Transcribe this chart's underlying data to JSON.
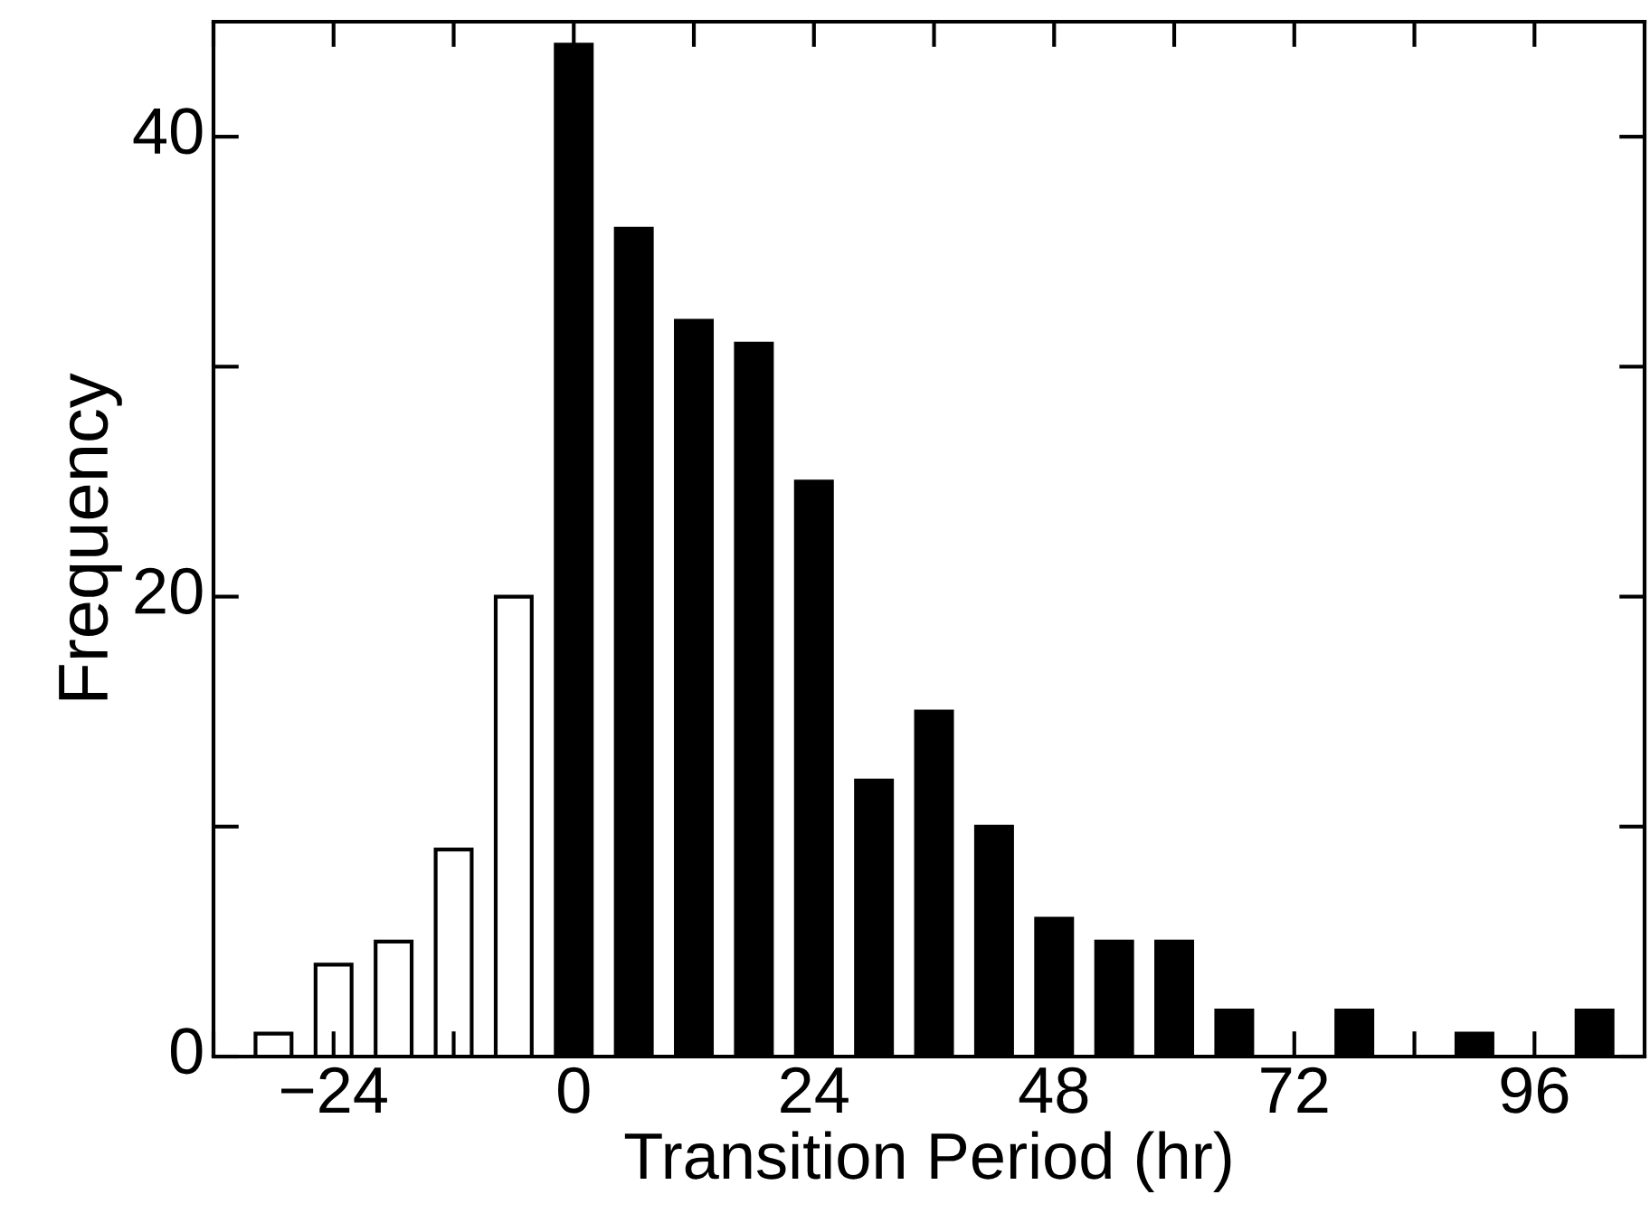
{
  "chart_data": {
    "type": "bar",
    "xlabel": "Transition Period (hr)",
    "ylabel": "Frequency",
    "series": [
      {
        "color": "#ffffff",
        "x": [
          -30,
          -24,
          -18,
          -12,
          -6
        ],
        "values": [
          1,
          4,
          5,
          9,
          20
        ]
      },
      {
        "color": "#000000",
        "x": [
          0,
          6,
          12,
          18,
          24,
          30,
          36,
          42,
          48,
          54,
          60,
          66,
          72,
          78,
          84,
          90,
          96,
          102
        ],
        "values": [
          44,
          36,
          32,
          31,
          25,
          12,
          15,
          10,
          6,
          5,
          5,
          2,
          null,
          2,
          null,
          1,
          null,
          2
        ]
      }
    ],
    "xlim": [
      -36,
      107
    ],
    "ylim": [
      0,
      45
    ],
    "xticks": [
      {
        "value": -36,
        "label": null
      },
      {
        "value": -24,
        "label": "−24"
      },
      {
        "value": -12,
        "label": null
      },
      0,
      {
        "value": 12,
        "label": null
      },
      24,
      {
        "value": 36,
        "label": null
      },
      48,
      {
        "value": 60,
        "label": null
      },
      72,
      {
        "value": 84,
        "label": null
      },
      96
    ],
    "yticks": [
      0,
      {
        "value": 10,
        "label": null
      },
      20,
      {
        "value": 30,
        "label": null
      },
      40
    ],
    "grid": false,
    "legend": false
  }
}
